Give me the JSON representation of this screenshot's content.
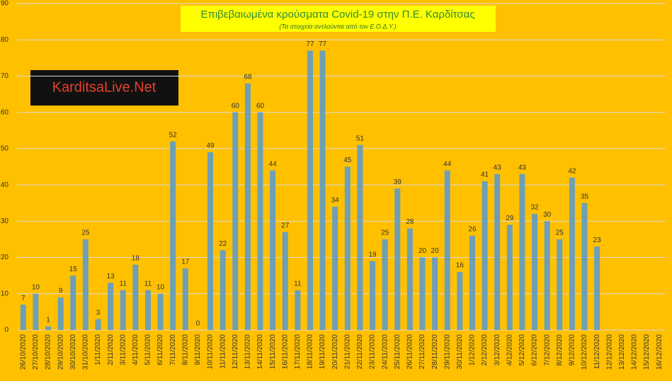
{
  "chart_data": {
    "type": "bar",
    "title": "Επιβεβαιωμένα κρούσματα Covid-19 στην Π.Ε. Καρδίτσας",
    "subtitle": "(Τα στοιχεία αντλούνται από τον Ε.Ο.Δ.Υ.)",
    "logo": "KarditsaLive.Net",
    "categories": [
      "26/10/2020",
      "27/10/2020",
      "28/10/2020",
      "29/10/2020",
      "30/10/2020",
      "31/10/2020",
      "1/11/2020",
      "2/11/2020",
      "3/11/2020",
      "4/11/2020",
      "5/11/2020",
      "6/11/2020",
      "7/11/2020",
      "8/11/2020",
      "9/11/2020",
      "10/11/2020",
      "11/11/2020",
      "12/11/2020",
      "13/11/2020",
      "14/11/2020",
      "15/11/2020",
      "16/11/2020",
      "17/11/2020",
      "18/11/2020",
      "19/11/2020",
      "20/11/2020",
      "21/11/2020",
      "22/11/2020",
      "23/11/2020",
      "24/11/2020",
      "25/11/2020",
      "26/11/2020",
      "27/11/2020",
      "28/11/2020",
      "29/11/2020",
      "30/11/2020",
      "1/12/2020",
      "2/12/2020",
      "3/12/2020",
      "4/12/2020",
      "5/12/2020",
      "6/12/2020",
      "7/12/2020",
      "8/12/2020",
      "9/12/2020",
      "10/12/2020",
      "11/12/2020",
      "12/12/2020",
      "13/12/2020",
      "14/12/2020",
      "15/12/2020",
      "16/12/2020"
    ],
    "values": [
      7,
      10,
      1,
      9,
      15,
      25,
      3,
      13,
      11,
      18,
      11,
      10,
      52,
      17,
      0,
      49,
      22,
      60,
      68,
      60,
      44,
      27,
      11,
      77,
      77,
      34,
      45,
      51,
      19,
      25,
      39,
      28,
      20,
      20,
      44,
      16,
      26,
      41,
      43,
      29,
      43,
      32,
      30,
      25,
      42,
      35,
      23,
      null,
      null,
      null,
      null,
      null
    ],
    "color": "#6e9fb5",
    "ylim": [
      0,
      90
    ],
    "yticks": [
      0,
      10,
      20,
      30,
      40,
      50,
      60,
      70,
      80,
      90
    ],
    "grid": true
  }
}
